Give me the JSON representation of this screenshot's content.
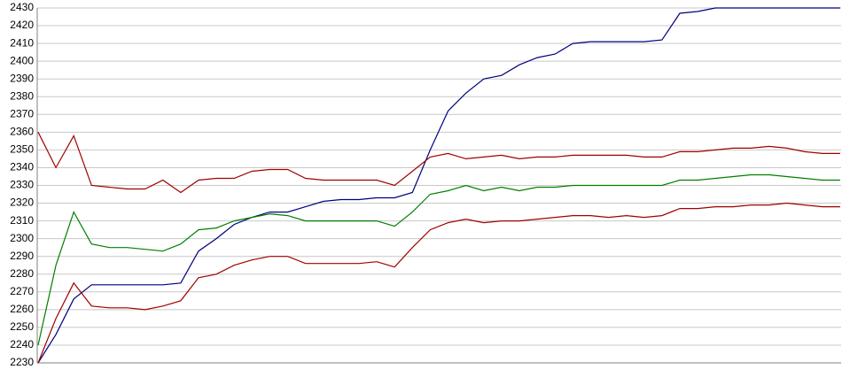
{
  "chart_data": {
    "type": "line",
    "categories": [
      null,
      null,
      null,
      null,
      null,
      null,
      null,
      null,
      null,
      null,
      null,
      null,
      null,
      null,
      null,
      null,
      null,
      null,
      null,
      null,
      null,
      null,
      null,
      null,
      null,
      null,
      null,
      null,
      null,
      null,
      null,
      null,
      null,
      null,
      null,
      null,
      null,
      null,
      null,
      null,
      null,
      null,
      null,
      null,
      null,
      null
    ],
    "series": [
      {
        "color": "#000080",
        "values": [
          2230,
          2246,
          2266,
          2274,
          2274,
          2274,
          2274,
          2274,
          2275,
          2293,
          2300,
          2308,
          2312,
          2315,
          2315,
          2318,
          2321,
          2322,
          2322,
          2323,
          2323,
          2326,
          2350,
          2372,
          2382,
          2390,
          2392,
          2398,
          2402,
          2404,
          2410,
          2411,
          2411,
          2411,
          2411,
          2412,
          2427,
          2428,
          2430,
          2430,
          2430,
          2430,
          2430,
          2430,
          2430,
          2430
        ]
      },
      {
        "color": "#008000",
        "values": [
          2240,
          2285,
          2315,
          2297,
          2295,
          2295,
          2294,
          2293,
          2297,
          2305,
          2306,
          2310,
          2312,
          2314,
          2313,
          2310,
          2310,
          2310,
          2310,
          2310,
          2307,
          2315,
          2325,
          2327,
          2330,
          2327,
          2329,
          2327,
          2329,
          2329,
          2330,
          2330,
          2330,
          2330,
          2330,
          2330,
          2333,
          2333,
          2334,
          2335,
          2336,
          2336,
          2335,
          2334,
          2333,
          2333
        ]
      },
      {
        "color": "#a00000",
        "values": [
          2360,
          2340,
          2358,
          2330,
          2329,
          2328,
          2328,
          2333,
          2326,
          2333,
          2334,
          2334,
          2338,
          2339,
          2339,
          2334,
          2333,
          2333,
          2333,
          2333,
          2330,
          2338,
          2346,
          2348,
          2345,
          2346,
          2347,
          2345,
          2346,
          2346,
          2347,
          2347,
          2347,
          2347,
          2346,
          2346,
          2349,
          2349,
          2350,
          2351,
          2351,
          2352,
          2351,
          2349,
          2348,
          2348
        ]
      },
      {
        "color": "#a00000",
        "values": [
          2230,
          2255,
          2275,
          2262,
          2261,
          2261,
          2260,
          2262,
          2265,
          2278,
          2280,
          2285,
          2288,
          2290,
          2290,
          2286,
          2286,
          2286,
          2286,
          2287,
          2284,
          2295,
          2305,
          2309,
          2311,
          2309,
          2310,
          2310,
          2311,
          2312,
          2313,
          2313,
          2312,
          2313,
          2312,
          2313,
          2317,
          2317,
          2318,
          2318,
          2319,
          2319,
          2320,
          2319,
          2318,
          2318
        ]
      }
    ],
    "ylim": [
      2230,
      2430
    ],
    "yticks": [
      2230,
      2240,
      2250,
      2260,
      2270,
      2280,
      2290,
      2300,
      2310,
      2320,
      2330,
      2340,
      2350,
      2360,
      2370,
      2380,
      2390,
      2400,
      2410,
      2420,
      2430
    ],
    "grid": true
  }
}
